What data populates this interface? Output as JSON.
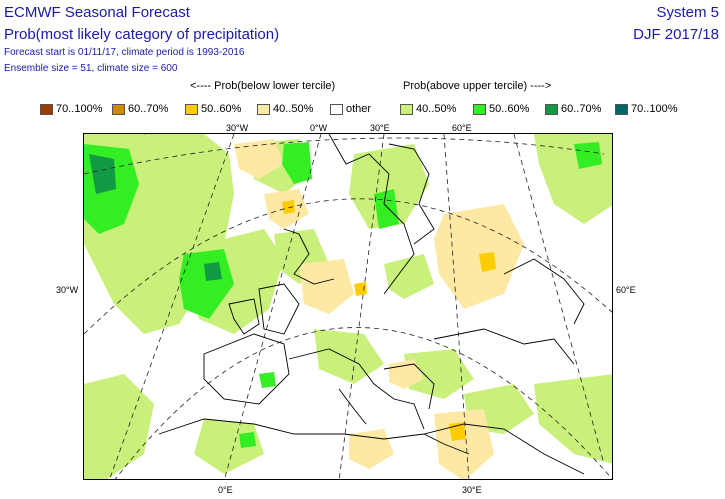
{
  "header": {
    "title": "ECMWF Seasonal Forecast",
    "subtitle": "Prob(most likely category of precipitation)",
    "forecast_info": "Forecast start is 01/11/17, climate period is 1993-2016",
    "ensemble_info": "Ensemble size = 51, climate size = 600",
    "system": "System 5",
    "season": "DJF 2017/18"
  },
  "legend": {
    "below_heading": "<---- Prob(below lower tercile)",
    "above_heading": "Prob(above upper tercile) ---->",
    "items": [
      {
        "label": "70..100%",
        "color": "#9a3b00"
      },
      {
        "label": "60..70%",
        "color": "#cc8a00"
      },
      {
        "label": "50..60%",
        "color": "#ffcc00"
      },
      {
        "label": "40..50%",
        "color": "#fde8a4"
      },
      {
        "label": "other",
        "color": "#ffffff"
      },
      {
        "label": "40..50%",
        "color": "#c8f07a"
      },
      {
        "label": "50..60%",
        "color": "#33ee22"
      },
      {
        "label": "60..70%",
        "color": "#119944"
      },
      {
        "label": "70..100%",
        "color": "#006666"
      }
    ]
  },
  "map": {
    "graticule_labels": {
      "top": [
        "30°W",
        "0°W",
        "30°E",
        "60°E"
      ],
      "left": "30°W",
      "right": "60°E",
      "bottom": [
        "0°E",
        "30°E"
      ]
    }
  }
}
